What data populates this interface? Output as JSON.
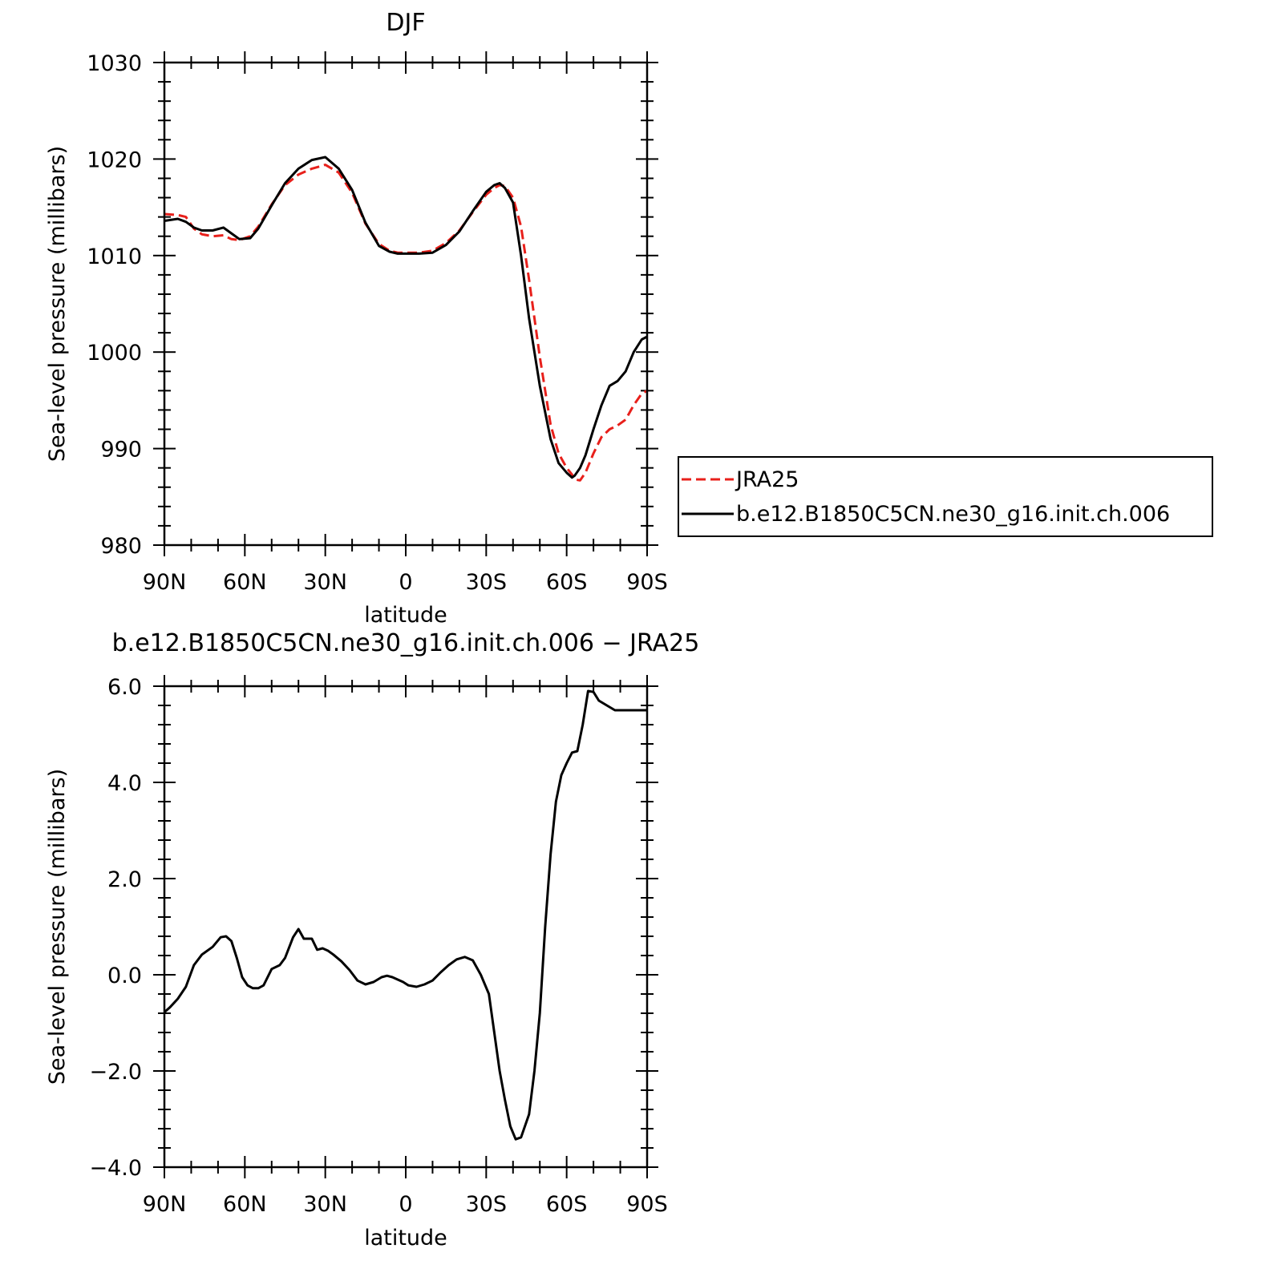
{
  "chart_data": [
    {
      "type": "line",
      "title": "DJF",
      "xlabel": "latitude",
      "ylabel": "Sea-level pressure (millibars)",
      "xlim": [
        -90,
        90
      ],
      "ylim": [
        980,
        1030
      ],
      "x_ticks": [
        -90,
        -60,
        -30,
        0,
        30,
        60,
        90
      ],
      "x_tick_labels": [
        "90N",
        "60N",
        "30N",
        "0",
        "30S",
        "60S",
        "90S"
      ],
      "y_ticks": [
        980,
        990,
        1000,
        1010,
        1020,
        1030
      ],
      "y_tick_labels": [
        "980",
        "990",
        "1000",
        "1010",
        "1020",
        "1030"
      ],
      "grid": false,
      "legend": "outside-right",
      "series": [
        {
          "name": "JRA25",
          "color": "#e8201b",
          "dash": "dashed",
          "x": [
            -90,
            -85,
            -82,
            -79,
            -76,
            -72,
            -68,
            -65,
            -62,
            -58,
            -55,
            -50,
            -45,
            -40,
            -35,
            -30,
            -25,
            -20,
            -15,
            -10,
            -6,
            -3,
            0,
            5,
            10,
            15,
            20,
            25,
            30,
            33,
            35,
            37,
            40,
            43,
            46,
            50,
            54,
            57,
            60,
            62,
            63,
            65,
            67,
            70,
            73,
            76,
            79,
            82,
            85,
            88,
            90
          ],
          "y": [
            1014.3,
            1014.2,
            1014.0,
            1012.8,
            1012.2,
            1012.0,
            1012.1,
            1011.7,
            1011.6,
            1012.0,
            1013.0,
            1015.3,
            1017.3,
            1018.4,
            1019.0,
            1019.4,
            1018.6,
            1016.5,
            1013.3,
            1011.2,
            1010.5,
            1010.3,
            1010.3,
            1010.3,
            1010.5,
            1011.3,
            1012.6,
            1014.5,
            1016.3,
            1017.0,
            1017.3,
            1017.2,
            1016.0,
            1013.0,
            1007.5,
            999.5,
            992.5,
            989.5,
            988.0,
            987.3,
            986.8,
            986.7,
            987.5,
            989.5,
            991.2,
            992.0,
            992.4,
            993.0,
            994.5,
            995.7,
            996.0
          ]
        },
        {
          "name": "b.e12.B1850C5CN.ne30_g16.init.ch.006",
          "color": "#000000",
          "dash": "solid",
          "x": [
            -90,
            -85,
            -82,
            -79,
            -76,
            -72,
            -68,
            -65,
            -62,
            -58,
            -55,
            -50,
            -45,
            -40,
            -35,
            -30,
            -25,
            -20,
            -15,
            -10,
            -6,
            -3,
            0,
            5,
            10,
            15,
            20,
            25,
            30,
            33,
            35,
            37,
            40,
            43,
            46,
            50,
            54,
            57,
            60,
            62,
            63,
            65,
            67,
            70,
            73,
            76,
            79,
            82,
            85,
            88,
            90
          ],
          "y": [
            1013.6,
            1013.8,
            1013.5,
            1012.9,
            1012.6,
            1012.6,
            1012.9,
            1012.3,
            1011.7,
            1011.8,
            1012.8,
            1015.2,
            1017.5,
            1019.0,
            1019.9,
            1020.2,
            1019.0,
            1016.8,
            1013.4,
            1011.0,
            1010.4,
            1010.2,
            1010.2,
            1010.2,
            1010.3,
            1011.1,
            1012.5,
            1014.6,
            1016.6,
            1017.3,
            1017.5,
            1017.0,
            1015.5,
            1010.0,
            1003.5,
            996.5,
            991.0,
            988.5,
            987.5,
            987.0,
            987.2,
            988.0,
            989.3,
            992.0,
            994.5,
            996.5,
            997.0,
            998.0,
            1000.0,
            1001.3,
            1001.6
          ]
        }
      ]
    },
    {
      "type": "line",
      "title": "b.e12.B1850C5CN.ne30_g16.init.ch.006 − JRA25",
      "xlabel": "latitude",
      "ylabel": "Sea-level pressure (millibars)",
      "xlim": [
        -90,
        90
      ],
      "ylim": [
        -4,
        6
      ],
      "x_ticks": [
        -90,
        -60,
        -30,
        0,
        30,
        60,
        90
      ],
      "x_tick_labels": [
        "90N",
        "60N",
        "30N",
        "0",
        "30S",
        "60S",
        "90S"
      ],
      "y_ticks": [
        -4,
        -2,
        0,
        2,
        4,
        6
      ],
      "y_tick_labels": [
        "−4.0",
        "−2.0",
        "0.0",
        "2.0",
        "4.0",
        "6.0"
      ],
      "grid": false,
      "series": [
        {
          "color": "#000000",
          "dash": "solid",
          "x": [
            -90,
            -88,
            -85,
            -82,
            -79,
            -76,
            -72,
            -69,
            -67,
            -65,
            -63,
            -61,
            -59,
            -57,
            -55,
            -53,
            -50,
            -47,
            -45,
            -42,
            -40,
            -38,
            -35,
            -33,
            -31,
            -29,
            -27,
            -24,
            -21,
            -18,
            -15,
            -12,
            -9,
            -7,
            -5,
            -3,
            -1,
            1,
            4,
            7,
            10,
            13,
            16,
            19,
            22,
            25,
            28,
            31,
            33,
            35,
            37,
            39,
            41,
            43,
            46,
            48,
            50,
            52,
            54,
            56,
            58,
            60,
            62,
            64,
            66,
            68,
            70,
            72,
            75,
            78,
            80,
            82,
            84,
            86,
            88,
            90
          ],
          "y": [
            -0.78,
            -0.68,
            -0.5,
            -0.25,
            0.2,
            0.42,
            0.58,
            0.78,
            0.8,
            0.7,
            0.35,
            -0.05,
            -0.22,
            -0.28,
            -0.28,
            -0.22,
            0.12,
            0.2,
            0.35,
            0.78,
            0.95,
            0.75,
            0.75,
            0.52,
            0.55,
            0.5,
            0.42,
            0.28,
            0.1,
            -0.12,
            -0.2,
            -0.15,
            -0.05,
            -0.02,
            -0.05,
            -0.1,
            -0.15,
            -0.22,
            -0.25,
            -0.2,
            -0.12,
            0.05,
            0.2,
            0.32,
            0.37,
            0.3,
            0.0,
            -0.4,
            -1.2,
            -2.0,
            -2.6,
            -3.15,
            -3.42,
            -3.38,
            -2.9,
            -2.0,
            -0.8,
            1.0,
            2.5,
            3.6,
            4.15,
            4.4,
            4.62,
            4.65,
            5.2,
            5.9,
            5.88,
            5.7,
            5.6,
            5.5,
            5.5,
            5.5,
            5.5,
            5.5,
            5.5,
            5.5
          ]
        }
      ]
    }
  ]
}
